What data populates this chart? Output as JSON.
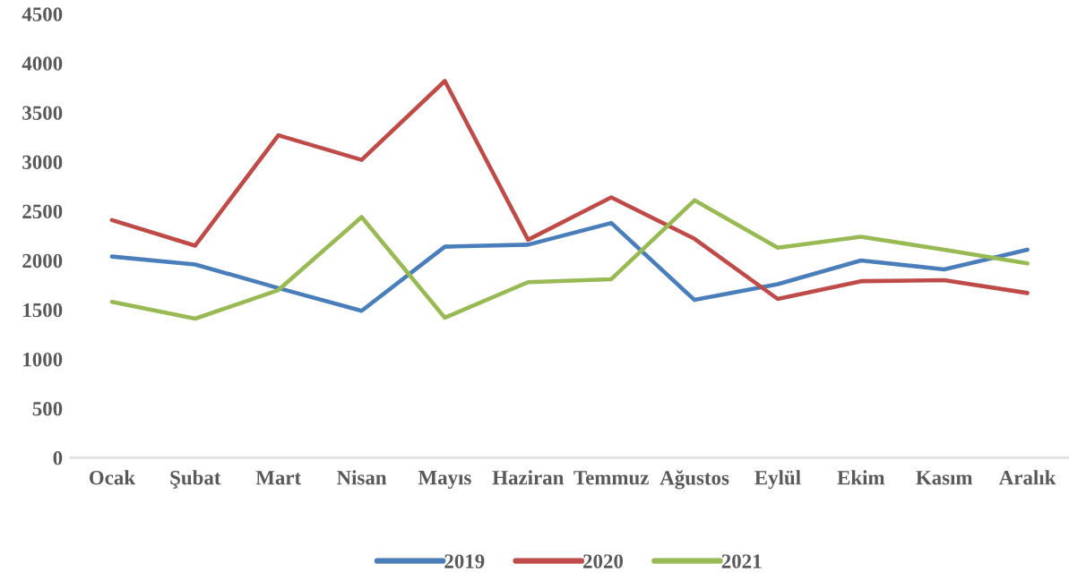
{
  "chart_data": {
    "type": "line",
    "categories": [
      "Ocak",
      "Şubat",
      "Mart",
      "Nisan",
      "Mayıs",
      "Haziran",
      "Temmuz",
      "Ağustos",
      "Eylül",
      "Ekim",
      "Kasım",
      "Aralık"
    ],
    "series": [
      {
        "name": "2019",
        "color": "#4a7ebb",
        "values": [
          2040,
          1960,
          1720,
          1490,
          2140,
          2160,
          2380,
          1600,
          1760,
          2000,
          1910,
          2110
        ]
      },
      {
        "name": "2020",
        "color": "#be4b48",
        "values": [
          2410,
          2150,
          3270,
          3020,
          3820,
          2210,
          2640,
          2220,
          1610,
          1790,
          1800,
          1670
        ]
      },
      {
        "name": "2021",
        "color": "#98b954",
        "values": [
          1580,
          1410,
          1700,
          2440,
          1420,
          1780,
          1810,
          2610,
          2130,
          2240,
          2110,
          1970
        ]
      }
    ],
    "ylim": [
      0,
      4500
    ],
    "yticks": [
      0,
      500,
      1000,
      1500,
      2000,
      2500,
      3000,
      3500,
      4000,
      4500
    ],
    "grid": false,
    "legend": "bottom",
    "marker": "none",
    "line_style": "solid"
  }
}
